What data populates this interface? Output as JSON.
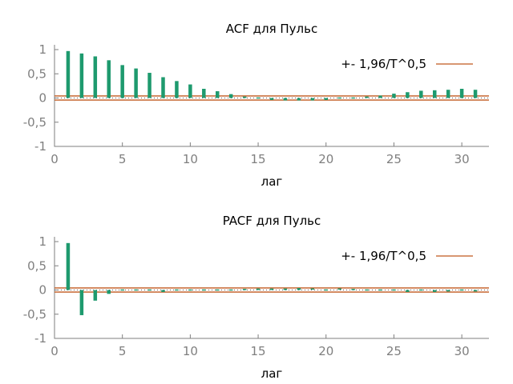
{
  "colors": {
    "bar": "#1e9a6e",
    "band": "#c0581e",
    "axis": "#7f7f7f",
    "zero_dots": "#555555"
  },
  "chart_data": [
    {
      "type": "bar",
      "title": "ACF для Пульс",
      "xlabel": "лаг",
      "ylabel": "",
      "xlim": [
        0,
        32
      ],
      "ylim": [
        -1,
        1
      ],
      "xticks": [
        0,
        5,
        10,
        15,
        20,
        25,
        30
      ],
      "yticks": [
        1,
        0.5,
        0,
        -0.5,
        -1
      ],
      "xtick_labels": [
        "0",
        "5",
        "10",
        "15",
        "20",
        "25",
        "30"
      ],
      "ytick_labels": [
        "1",
        "0,5",
        "0",
        "-0,5",
        "-1"
      ],
      "legend": {
        "label": "+- 1,96/T^0,5",
        "placement": "top-right"
      },
      "confidence_band": 0.042,
      "x": [
        1,
        2,
        3,
        4,
        5,
        6,
        7,
        8,
        9,
        10,
        11,
        12,
        13,
        14,
        15,
        16,
        17,
        18,
        19,
        20,
        21,
        22,
        23,
        24,
        25,
        26,
        27,
        28,
        29,
        30,
        31
      ],
      "values": [
        0.97,
        0.92,
        0.86,
        0.78,
        0.68,
        0.61,
        0.52,
        0.43,
        0.35,
        0.28,
        0.19,
        0.14,
        0.08,
        0.03,
        0.0,
        -0.04,
        -0.05,
        -0.05,
        -0.05,
        -0.04,
        -0.02,
        0.0,
        0.03,
        0.05,
        0.09,
        0.12,
        0.15,
        0.16,
        0.17,
        0.19,
        0.17
      ]
    },
    {
      "type": "bar",
      "title": "PACF для Пульс",
      "xlabel": "лаг",
      "ylabel": "",
      "xlim": [
        0,
        32
      ],
      "ylim": [
        -1,
        1
      ],
      "xticks": [
        0,
        5,
        10,
        15,
        20,
        25,
        30
      ],
      "yticks": [
        1,
        0.5,
        0,
        -0.5,
        -1
      ],
      "xtick_labels": [
        "0",
        "5",
        "10",
        "15",
        "20",
        "25",
        "30"
      ],
      "ytick_labels": [
        "1",
        "0,5",
        "0",
        "-0,5",
        "-1"
      ],
      "legend": {
        "label": "+- 1,96/T^0,5",
        "placement": "top-right"
      },
      "confidence_band": 0.042,
      "x": [
        1,
        2,
        3,
        4,
        5,
        6,
        7,
        8,
        9,
        10,
        11,
        12,
        13,
        14,
        15,
        16,
        17,
        18,
        19,
        20,
        21,
        22,
        23,
        24,
        25,
        26,
        27,
        28,
        29,
        30,
        31
      ],
      "values": [
        0.97,
        -0.52,
        -0.22,
        -0.08,
        0.0,
        -0.01,
        0.0,
        -0.04,
        -0.02,
        0.0,
        0.0,
        0.0,
        0.0,
        0.01,
        0.03,
        0.03,
        0.03,
        0.04,
        0.02,
        0.0,
        0.02,
        0.01,
        0.0,
        0.0,
        0.0,
        -0.04,
        -0.01,
        -0.04,
        -0.03,
        0.0,
        -0.03
      ]
    }
  ]
}
